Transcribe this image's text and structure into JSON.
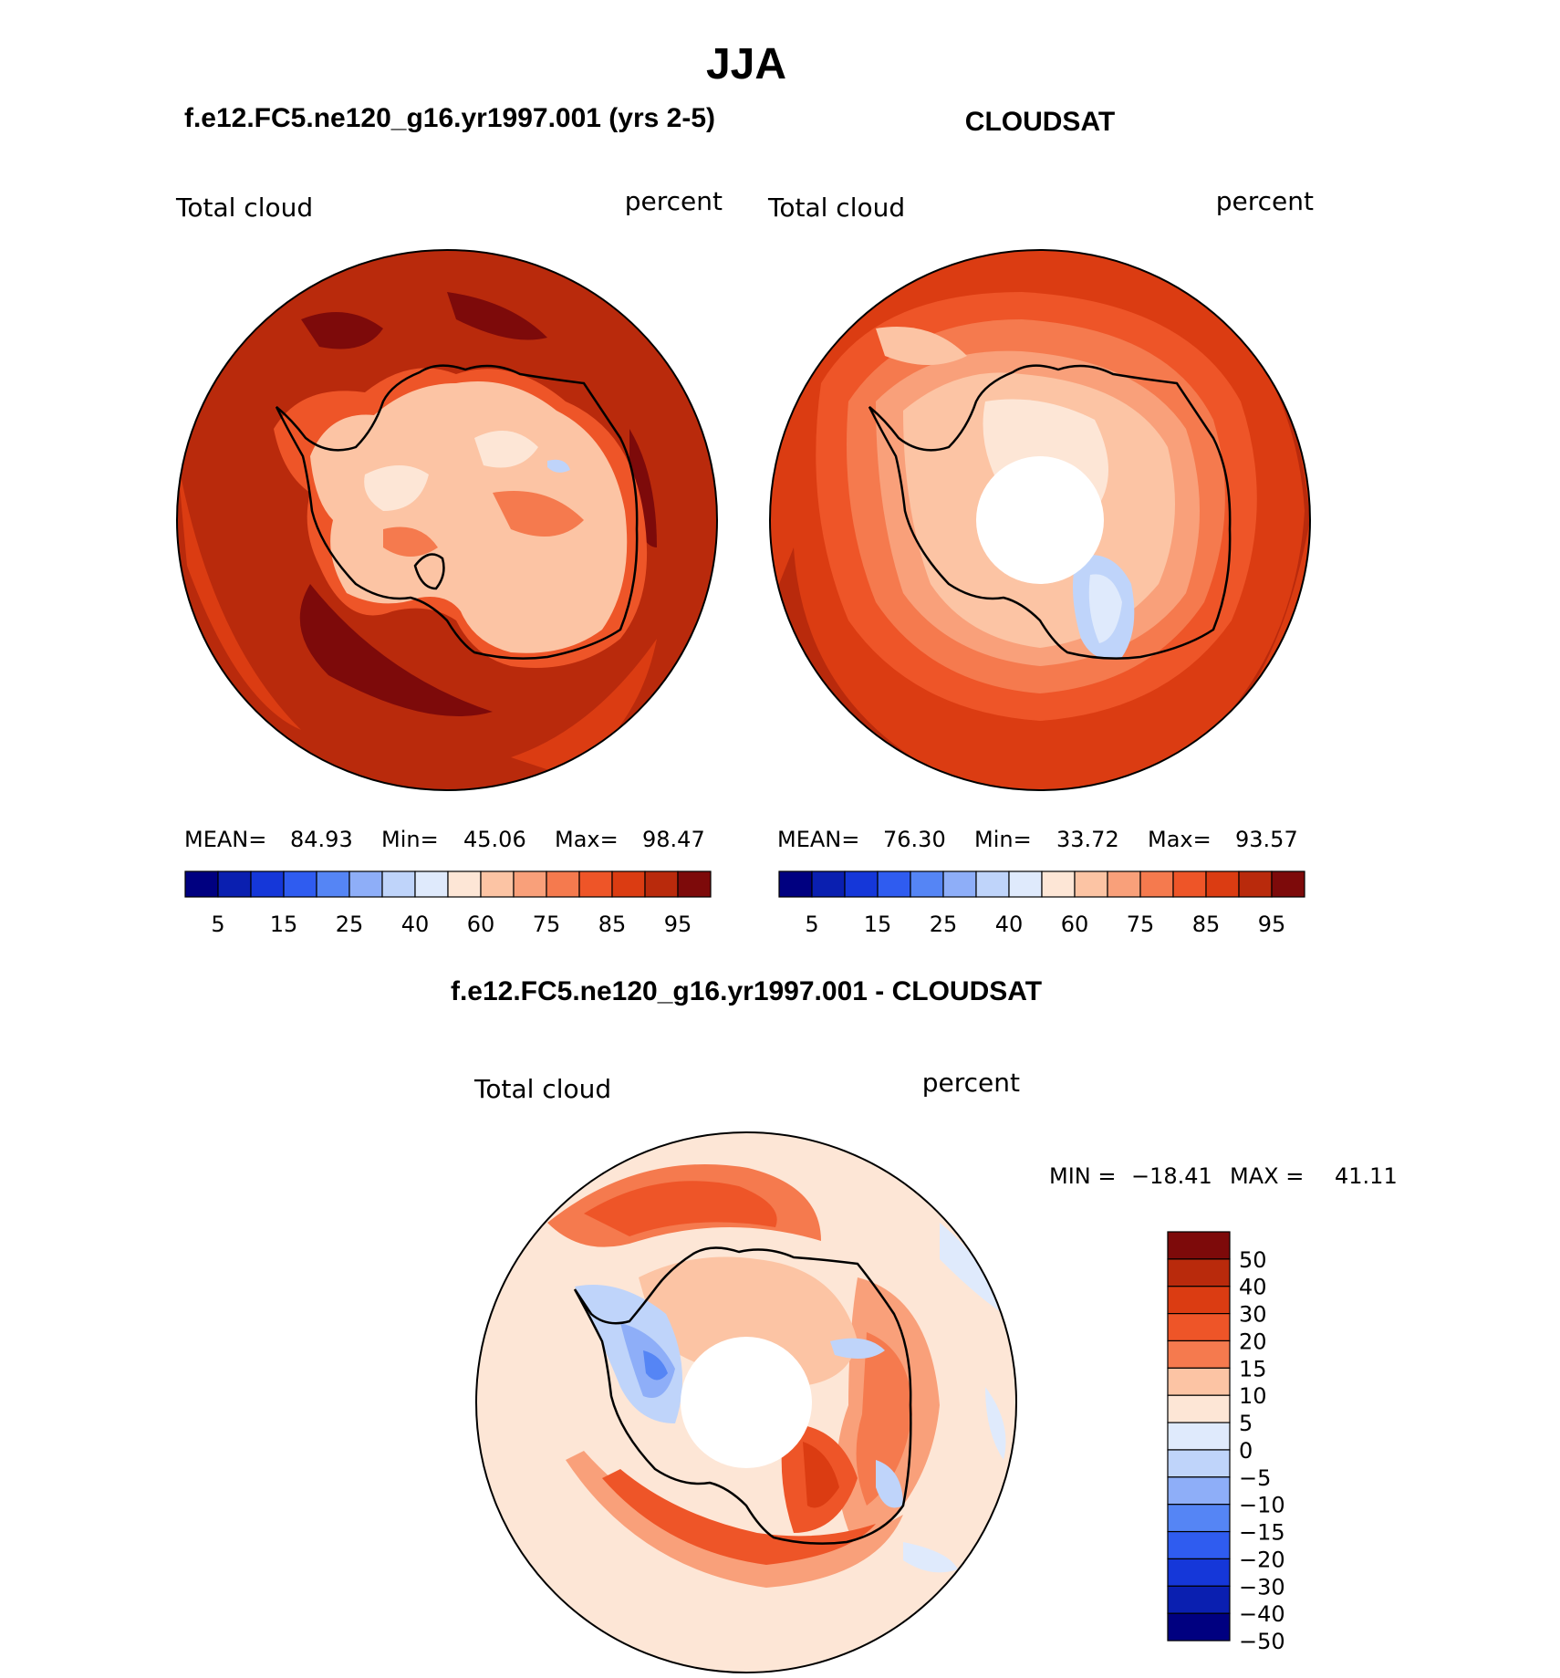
{
  "figure": {
    "season": "JJA"
  },
  "chart_data": [
    {
      "type": "heatmap",
      "projection": "south-polar-stereographic",
      "title": "f.e12.FC5.ne120_g16.yr1997.001 (yrs 2-5)",
      "variable": "Total cloud",
      "units": "percent",
      "stats": {
        "mean_label": "MEAN=",
        "mean": "84.93",
        "min_label": "Min=",
        "min": "45.06",
        "max_label": "Max=",
        "max": "98.47"
      },
      "colorbar": {
        "colors": [
          "#000080",
          "#0a1fb0",
          "#1537d9",
          "#2f5cf0",
          "#5585f5",
          "#8eaef8",
          "#bfd4fa",
          "#dfeafc",
          "#fde6d6",
          "#fcc4a4",
          "#f9a07a",
          "#f57a4e",
          "#ee5528",
          "#db3c12",
          "#b92a0c",
          "#7d0a0a"
        ],
        "tick_labels": [
          "5",
          "15",
          "25",
          "40",
          "60",
          "75",
          "85",
          "95"
        ]
      }
    },
    {
      "type": "heatmap",
      "projection": "south-polar-stereographic",
      "title": "CLOUDSAT",
      "variable": "Total cloud",
      "units": "percent",
      "stats": {
        "mean_label": "MEAN=",
        "mean": "76.30",
        "min_label": "Min=",
        "min": "33.72",
        "max_label": "Max=",
        "max": "93.57"
      },
      "colorbar": {
        "colors": [
          "#000080",
          "#0a1fb0",
          "#1537d9",
          "#2f5cf0",
          "#5585f5",
          "#8eaef8",
          "#bfd4fa",
          "#dfeafc",
          "#fde6d6",
          "#fcc4a4",
          "#f9a07a",
          "#f57a4e",
          "#ee5528",
          "#db3c12",
          "#b92a0c",
          "#7d0a0a"
        ],
        "tick_labels": [
          "5",
          "15",
          "25",
          "40",
          "60",
          "75",
          "85",
          "95"
        ]
      }
    },
    {
      "type": "heatmap",
      "projection": "south-polar-stereographic",
      "title": "f.e12.FC5.ne120_g16.yr1997.001 - CLOUDSAT",
      "variable": "Total cloud",
      "units": "percent",
      "stats": {
        "min_label": "MIN =",
        "min": "−18.41",
        "max_label": "MAX =",
        "max": "41.11"
      },
      "colorbar": {
        "colors": [
          "#7d0a0a",
          "#b92a0c",
          "#db3c12",
          "#ee5528",
          "#f57a4e",
          "#fcc4a4",
          "#fde6d6",
          "#dfeafc",
          "#bfd4fa",
          "#8eaef8",
          "#5585f5",
          "#2f5cf0",
          "#1537d9",
          "#0a1fb0",
          "#000080"
        ],
        "tick_labels": [
          "50",
          "40",
          "30",
          "20",
          "15",
          "10",
          "5",
          "0",
          "−5",
          "−10",
          "−15",
          "−20",
          "−30",
          "−40",
          "−50"
        ]
      }
    }
  ]
}
